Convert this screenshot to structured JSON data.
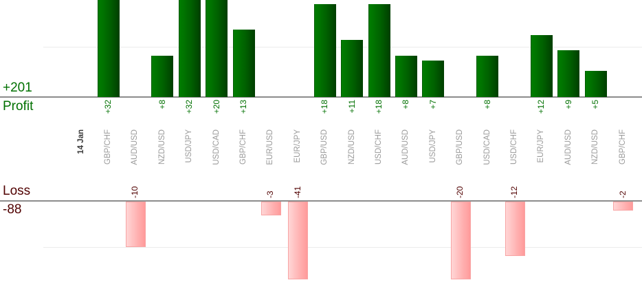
{
  "chart_data": {
    "type": "bar",
    "title": "",
    "date_label": "14 Jan",
    "categories": [
      "GBP/CHF",
      "AUD/USD",
      "NZD/USD",
      "USD/JPY",
      "USD/CAD",
      "GBP/CHF",
      "EUR/USD",
      "EUR/JPY",
      "GBP/USD",
      "NZD/USD",
      "USD/CHF",
      "AUD/USD",
      "USD/JPY",
      "GBP/USD",
      "USD/CAD",
      "USD/CHF",
      "EUR/JPY",
      "AUD/USD",
      "NZD/USD",
      "GBP/CHF"
    ],
    "values": [
      32,
      -10,
      8,
      32,
      20,
      13,
      -3,
      -41,
      18,
      11,
      18,
      8,
      7,
      -20,
      8,
      -12,
      12,
      9,
      5,
      -2
    ],
    "value_labels": [
      "+32",
      "-10",
      "+8",
      "+32",
      "+20",
      "+13",
      "-3",
      "-41",
      "+18",
      "+11",
      "+18",
      "+8",
      "+7",
      "-20",
      "+8",
      "-12",
      "+12",
      "+9",
      "+5",
      "-2"
    ],
    "profit": {
      "axis_label": "Profit",
      "total_label": "+201"
    },
    "loss": {
      "axis_label": "Loss",
      "total_label": "-88"
    },
    "layout": {
      "grid_on": true,
      "profit_gridline_value": 10,
      "loss_gridline_value": -10,
      "profit_bars_clipped_at_top": true,
      "loss_bars_clamped": [
        -41,
        -20
      ]
    },
    "colors": {
      "profit_bar_light": "#007d00",
      "profit_bar_dark": "#003e00",
      "loss_bar_light": "#ffd6d6",
      "loss_bar_dark": "#ff9a9a",
      "profit_text": "#007000",
      "loss_text": "#500000",
      "category_text": "#9a9a9a",
      "date_text": "#3a3a3a",
      "axis_line": "#8c8c8c",
      "gridline": "#ececec"
    }
  }
}
